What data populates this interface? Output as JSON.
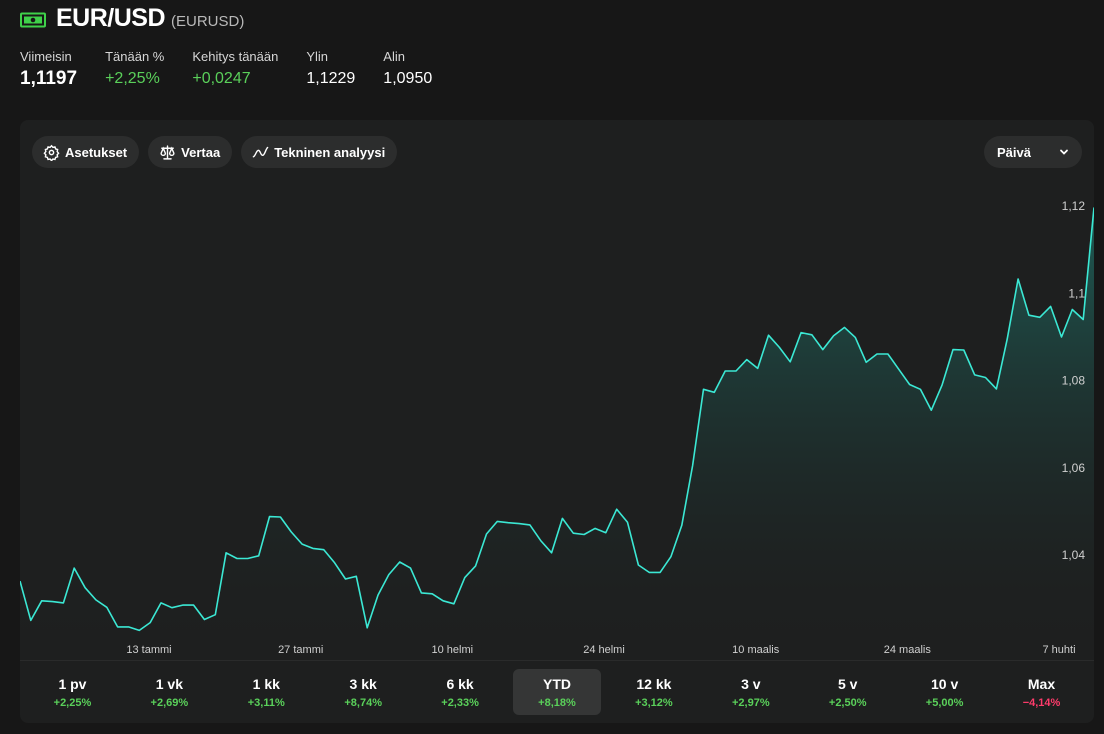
{
  "header": {
    "icon": "cash-icon",
    "pair": "EUR/USD",
    "ticker": "(EURUSD)"
  },
  "stats": [
    {
      "label": "Viimeisin",
      "value": "1,1197",
      "style": "big"
    },
    {
      "label": "Tänään %",
      "value": "+2,25%",
      "style": "pos"
    },
    {
      "label": "Kehitys tänään",
      "value": "+0,0247",
      "style": "pos"
    },
    {
      "label": "Ylin",
      "value": "1,1229",
      "style": ""
    },
    {
      "label": "Alin",
      "value": "1,0950",
      "style": ""
    }
  ],
  "toolbar": {
    "settings_label": "Asetukset",
    "compare_label": "Vertaa",
    "technical_label": "Tekninen analyysi",
    "interval_value": "Päivä"
  },
  "colors": {
    "line": "#3be8d4",
    "positive": "#5ad05a",
    "negative": "#ff3b6b"
  },
  "chart_data": {
    "type": "area",
    "series": [
      {
        "values": [
          1.034,
          1.025,
          1.0295,
          1.0293,
          1.029,
          1.037,
          1.0325,
          1.0297,
          1.028,
          1.0235,
          1.0235,
          1.0227,
          1.0245,
          1.029,
          1.0279,
          1.0285,
          1.0285,
          1.0252,
          1.0263,
          1.0405,
          1.0392,
          1.0392,
          1.0398,
          1.0488,
          1.0487,
          1.0453,
          1.0425,
          1.0415,
          1.0412,
          1.0382,
          1.0345,
          1.0351,
          1.0233,
          1.0308,
          1.0355,
          1.0384,
          1.037,
          1.0313,
          1.0311,
          1.0295,
          1.0288,
          1.0348,
          1.0375,
          1.0448,
          1.0477,
          1.0474,
          1.0472,
          1.0469,
          1.0433,
          1.0405,
          1.0484,
          1.045,
          1.0447,
          1.0461,
          1.0451,
          1.0505,
          1.0475,
          1.0377,
          1.036,
          1.036,
          1.0396,
          1.0468,
          1.0605,
          1.078,
          1.0773,
          1.0822,
          1.0822,
          1.0848,
          1.0828,
          1.0904,
          1.0876,
          1.0843,
          1.091,
          1.0905,
          1.0871,
          1.0903,
          1.0922,
          1.0899,
          1.0842,
          1.0861,
          1.0861,
          1.0826,
          1.0791,
          1.078,
          1.0732,
          1.079,
          1.0871,
          1.087,
          1.0813,
          1.0807,
          1.0781,
          1.0895,
          1.1033,
          1.095,
          1.0945,
          1.097,
          1.09,
          1.0963,
          1.094,
          1.1197
        ]
      }
    ],
    "x_tick_labels": [
      "13 tammi",
      "27 tammi",
      "10 helmi",
      "24 helmi",
      "10 maalis",
      "24 maalis",
      "7 huhti"
    ],
    "y_tick_labels": [
      "1,12",
      "1,1",
      "1,08",
      "1,06",
      "1,04"
    ],
    "y_ticks": [
      1.12,
      1.1,
      1.08,
      1.06,
      1.04
    ],
    "ylim": [
      1.0205,
      1.126
    ],
    "grid": false
  },
  "periods": [
    {
      "label": "1 pv",
      "change": "+2,25%"
    },
    {
      "label": "1 vk",
      "change": "+2,69%"
    },
    {
      "label": "1 kk",
      "change": "+3,11%"
    },
    {
      "label": "3 kk",
      "change": "+8,74%"
    },
    {
      "label": "6 kk",
      "change": "+2,33%"
    },
    {
      "label": "YTD",
      "change": "+8,18%",
      "active": true
    },
    {
      "label": "12 kk",
      "change": "+3,12%"
    },
    {
      "label": "3 v",
      "change": "+2,97%"
    },
    {
      "label": "5 v",
      "change": "+2,50%"
    },
    {
      "label": "10 v",
      "change": "+5,00%"
    },
    {
      "label": "Max",
      "change": "−4,14%",
      "negative": true
    }
  ]
}
